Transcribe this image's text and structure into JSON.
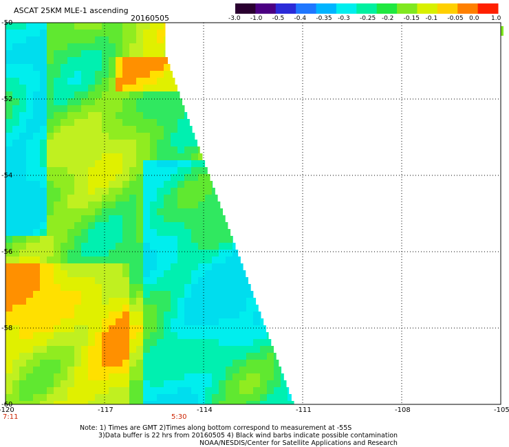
{
  "header": {
    "title": "ASCAT 25KM MLE-1 ascending",
    "date": "20160505"
  },
  "colorbar": {
    "labels": [
      "-3.0",
      "-1.0",
      "-0.5",
      "-0.4",
      "-0.35",
      "-0.3",
      "-0.25",
      "-0.2",
      "-0.15",
      "-0.1",
      "-0.05",
      "0.0",
      "1.0"
    ],
    "colors": [
      "#2a0030",
      "#4b0082",
      "#2b2bd8",
      "#1f77ff",
      "#00b4ff",
      "#00eeee",
      "#00f0a0",
      "#20e840",
      "#80e820",
      "#d8f000",
      "#ffd000",
      "#ff8000",
      "#ff2000"
    ]
  },
  "map": {
    "lon_ticks": [
      "-120",
      "-117",
      "-114",
      "-111",
      "-108",
      "-105"
    ],
    "lat_ticks": [
      "-50",
      "-52",
      "-54",
      "-56",
      "-58",
      "-60"
    ],
    "lon_range": [
      -120,
      -105
    ],
    "lat_range": [
      -60,
      -50
    ],
    "grid": true
  },
  "times": {
    "left": "7:11",
    "middle": "5:30"
  },
  "notes": {
    "line1": "Note: 1) Times are GMT 2)Times along bottom correspond to measurement at -55S",
    "line2": "3)Data buffer is 22 hrs from 20160505 4) Black wind barbs indicate possible contamination",
    "line3": "NOAA/NESDIS/Center for Satellite Applications and Research"
  }
}
